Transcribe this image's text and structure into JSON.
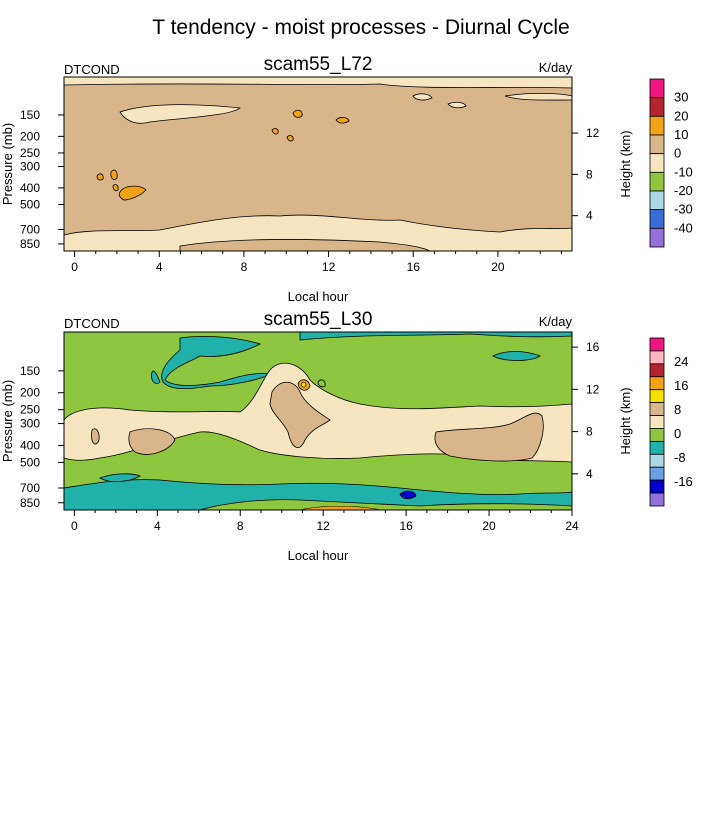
{
  "page": {
    "title": "T tendency - moist processes - Diurnal Cycle"
  },
  "chart_data": [
    {
      "type": "contour",
      "title": "scam55_L72",
      "left_label": "DTCOND",
      "right_label": "K/day",
      "xlabel": "Local hour",
      "ylabel": "Pressure (mb)",
      "y2label": "Height (km)",
      "xlim": [
        -0.5,
        23.5
      ],
      "x_ticks": [
        0,
        4,
        8,
        12,
        16,
        20
      ],
      "pressure_ticks": [
        150,
        200,
        250,
        300,
        400,
        500,
        700,
        850
      ],
      "height_ticks": [
        4,
        8,
        12
      ],
      "colorbar": {
        "labels": [
          "30",
          "20",
          "10",
          "0",
          "-10",
          "-20",
          "-30",
          "-40"
        ],
        "colors": [
          "#f0167f",
          "#b3242e",
          "#f4a215",
          "#d9b68a",
          "#f5e6c0",
          "#8ec63f",
          "#add8e6",
          "#3a6cd8",
          "#9370db"
        ]
      },
      "fields": [
        {
          "level": "0 to 10",
          "color": "#d9b68a",
          "region": "most of domain"
        },
        {
          "level": "-10 to 0",
          "color": "#f5e6c0",
          "region": "tropopause band, 100-150 mb"
        },
        {
          "level": "-10 to 0",
          "color": "#f5e6c0",
          "region": "boundary layer near 850 mb"
        },
        {
          "level": "10 to 20",
          "color": "#f4a215",
          "region": "small cells 200-500 mb"
        }
      ]
    },
    {
      "type": "contour",
      "title": "scam55_L30",
      "left_label": "DTCOND",
      "right_label": "K/day",
      "xlabel": "Local hour",
      "ylabel": "Pressure (mb)",
      "y2label": "Height (km)",
      "xlim": [
        -0.5,
        24
      ],
      "x_ticks": [
        0,
        4,
        8,
        12,
        16,
        20,
        24
      ],
      "pressure_ticks": [
        150,
        200,
        250,
        300,
        400,
        500,
        700,
        850
      ],
      "height_ticks": [
        4,
        8,
        12,
        16
      ],
      "colorbar": {
        "labels": [
          "24",
          "16",
          "8",
          "0",
          "-8",
          "-16"
        ],
        "colors": [
          "#f0167f",
          "#ffb6c1",
          "#b3242e",
          "#f4a215",
          "#f5e000",
          "#d9b68a",
          "#f5e6c0",
          "#8ec63f",
          "#20b2aa",
          "#add8e6",
          "#6a9fe0",
          "#0000cd",
          "#9370db"
        ]
      },
      "fields": [
        {
          "level": "0 to 4",
          "color": "#8ec63f",
          "region": "upper and lower troposphere"
        },
        {
          "level": "4 to 8",
          "color": "#f5e6c0",
          "region": "mid troposphere 200-500 mb"
        },
        {
          "level": "8 to 12",
          "color": "#d9b68a",
          "region": "patches near 400 mb and 250 mb"
        },
        {
          "level": "-4 to 0",
          "color": "#20b2aa",
          "region": "above 150 mb and boundary layer"
        }
      ]
    }
  ]
}
